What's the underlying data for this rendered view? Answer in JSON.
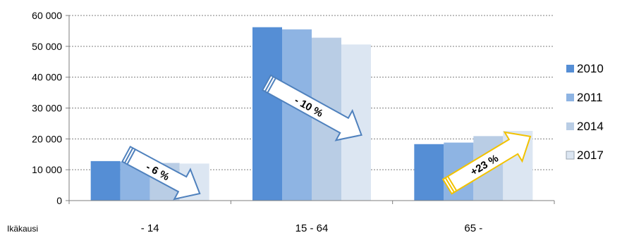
{
  "chart_data": {
    "type": "bar",
    "categories": [
      "- 14",
      "15 - 64",
      "65 -"
    ],
    "series": [
      {
        "name": "2010",
        "values": [
          12800,
          56200,
          18300
        ],
        "color": "#558ed5"
      },
      {
        "name": "2011",
        "values": [
          12600,
          55500,
          18800
        ],
        "color": "#8eb4e3"
      },
      {
        "name": "2014",
        "values": [
          12200,
          52800,
          20900
        ],
        "color": "#b9cde5"
      },
      {
        "name": "2017",
        "values": [
          12000,
          50600,
          22600
        ],
        "color": "#dce6f2"
      }
    ],
    "xlabel": "Ikäkausi",
    "ylim": [
      0,
      60000
    ],
    "yticks": [
      "0",
      "10 000",
      "20 000",
      "30 000",
      "40 000",
      "50 000",
      "60 000"
    ],
    "ytick_values": [
      0,
      10000,
      20000,
      30000,
      40000,
      50000,
      60000
    ],
    "grid": true,
    "legend_position": "right",
    "annotations": [
      {
        "category": "- 14",
        "text": "- 6 %",
        "direction": "down",
        "color": "#4f81bd"
      },
      {
        "category": "15 - 64",
        "text": "- 10 %",
        "direction": "down",
        "color": "#4f81bd"
      },
      {
        "category": "65 -",
        "text": "+23 %",
        "direction": "up",
        "color": "#f2c200"
      }
    ]
  }
}
